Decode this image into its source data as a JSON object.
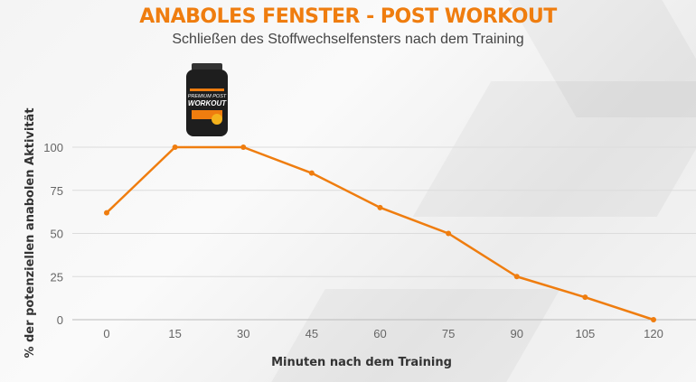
{
  "header": {
    "title": "ANABOLES FENSTER - POST WORKOUT",
    "subtitle": "Schließen des Stoffwechselfensters nach dem Training"
  },
  "product": {
    "label_line1": "PREMIUM POST",
    "label_line2": "WORKOUT"
  },
  "colors": {
    "accent": "#ef7d0f",
    "grid": "#dcdcdc"
  },
  "chart_data": {
    "type": "line",
    "title": "ANABOLES FENSTER - POST WORKOUT",
    "subtitle": "Schließen des Stoffwechselfensters nach dem Training",
    "xlabel": "Minuten nach dem Training",
    "ylabel": "% der potenziellen anabolen Aktivität",
    "x": [
      0,
      15,
      30,
      45,
      60,
      75,
      90,
      105,
      120
    ],
    "series": [
      {
        "values": [
          62,
          100,
          100,
          85,
          65,
          50,
          25,
          13,
          0
        ]
      }
    ],
    "xticks": [
      "0",
      "15",
      "30",
      "45",
      "60",
      "75",
      "90",
      "105",
      "120"
    ],
    "yticks": [
      "0",
      "25",
      "50",
      "75",
      "100"
    ],
    "ylim": [
      0,
      100
    ],
    "xlim": [
      0,
      120
    ],
    "grid": "horizontal"
  }
}
